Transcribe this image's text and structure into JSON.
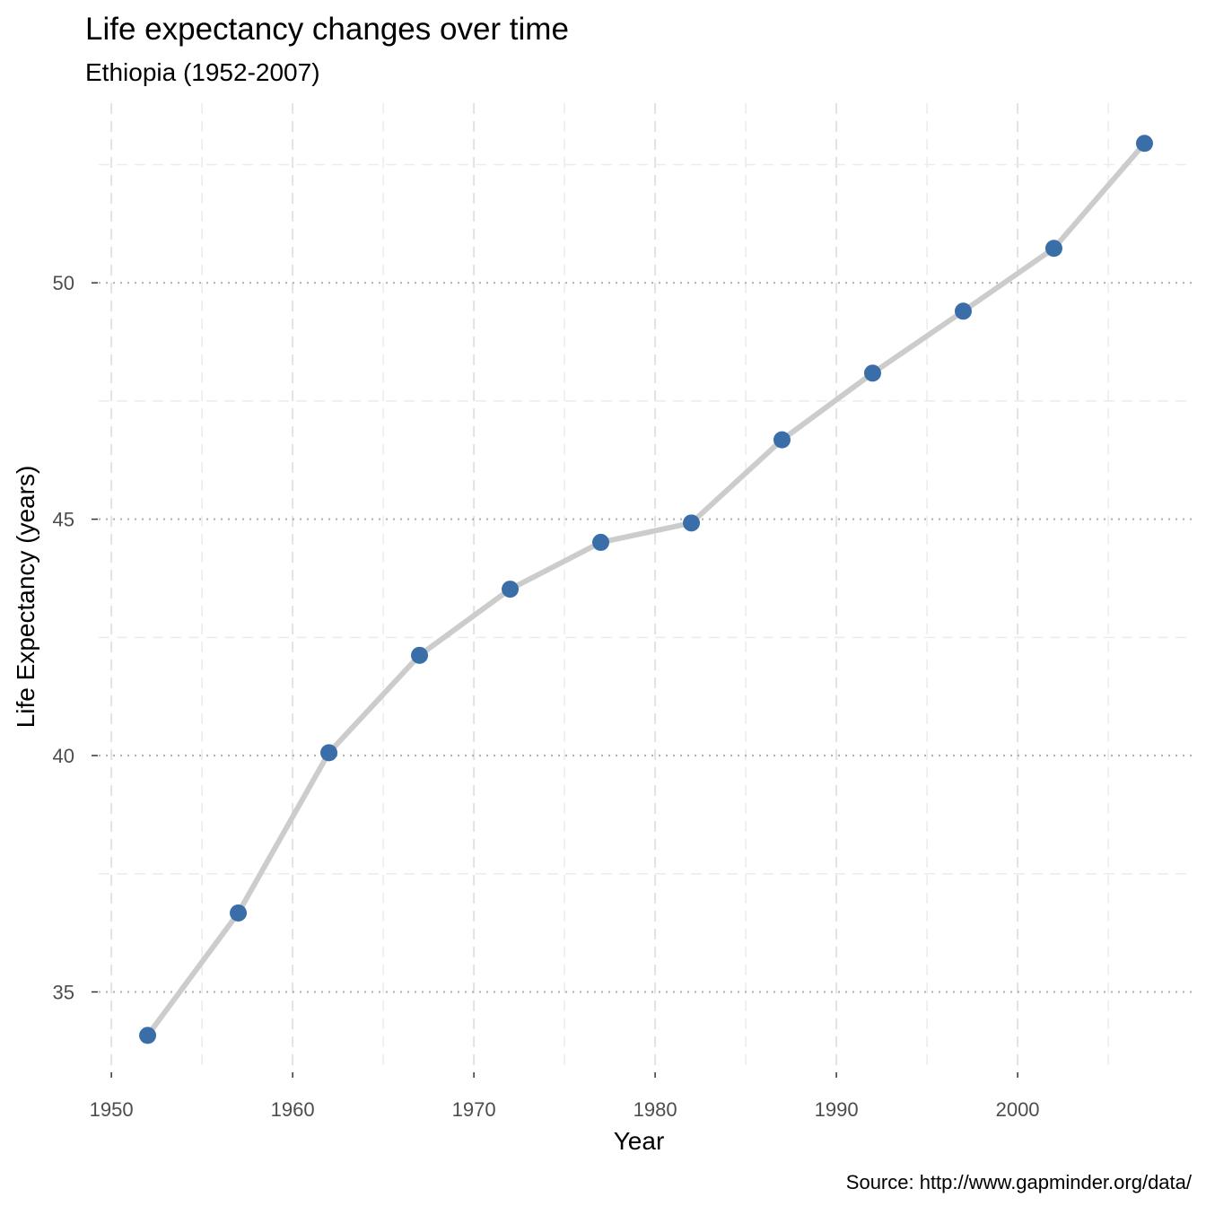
{
  "chart_data": {
    "type": "line",
    "title": "Life expectancy changes over time",
    "subtitle": "Ethiopia (1952-2007)",
    "xlabel": "Year",
    "ylabel": "Life Expectancy (years)",
    "caption": "Source: http://www.gapminder.org/data/",
    "x_ticks": [
      "1950",
      "1960",
      "1970",
      "1980",
      "1990",
      "2000"
    ],
    "y_ticks": [
      "35",
      "40",
      "45",
      "50"
    ],
    "xlim": [
      1949.3,
      2009.7
    ],
    "ylim": [
      33.3,
      53.8
    ],
    "grid": true,
    "line_color": "#cccccc",
    "point_color": "#3a6ea8",
    "series": [
      {
        "x": [
          1952,
          1957,
          1962,
          1967,
          1972,
          1977,
          1982,
          1987,
          1992,
          1997,
          2002,
          2007
        ],
        "y": [
          34.08,
          36.67,
          40.06,
          42.12,
          43.52,
          44.51,
          44.92,
          46.68,
          48.09,
          49.4,
          50.73,
          52.95
        ]
      }
    ]
  }
}
